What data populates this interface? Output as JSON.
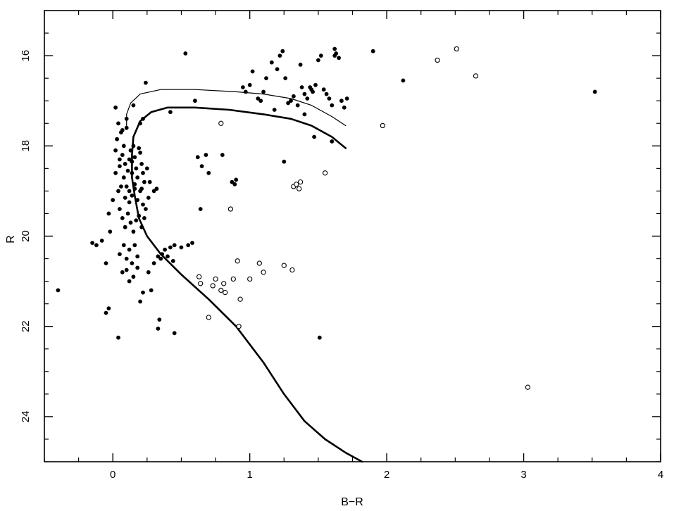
{
  "chart_data": {
    "type": "scatter",
    "title": "",
    "xlabel": "B−R",
    "ylabel": "R",
    "xlim": [
      -0.5,
      4.0
    ],
    "ylim": [
      25.0,
      15.0
    ],
    "y_inverted": true,
    "x_ticks": [
      0,
      1,
      2,
      3,
      4
    ],
    "x_tick_labels": [
      "0",
      "1",
      "2",
      "3",
      "4"
    ],
    "y_ticks": [
      16,
      18,
      20,
      22,
      24
    ],
    "y_tick_labels": [
      "16",
      "18",
      "20",
      "22",
      "24"
    ],
    "grid": false,
    "series": [
      {
        "marker": "filled-circle",
        "color": "#000000",
        "points": [
          [
            -0.4,
            21.2
          ],
          [
            -0.15,
            20.15
          ],
          [
            -0.12,
            20.2
          ],
          [
            -0.08,
            20.1
          ],
          [
            -0.05,
            21.7
          ],
          [
            -0.03,
            21.6
          ],
          [
            -0.05,
            20.6
          ],
          [
            -0.02,
            19.9
          ],
          [
            -0.03,
            19.5
          ],
          [
            0.0,
            19.2
          ],
          [
            0.02,
            18.6
          ],
          [
            0.04,
            19.0
          ],
          [
            0.05,
            18.3
          ],
          [
            0.03,
            17.85
          ],
          [
            0.02,
            17.15
          ],
          [
            0.04,
            17.5
          ],
          [
            0.06,
            17.7
          ],
          [
            0.07,
            17.65
          ],
          [
            0.08,
            18.0
          ],
          [
            0.1,
            17.4
          ],
          [
            0.1,
            17.6
          ],
          [
            0.15,
            17.1
          ],
          [
            0.2,
            17.5
          ],
          [
            0.22,
            17.4
          ],
          [
            0.24,
            16.6
          ],
          [
            0.07,
            18.2
          ],
          [
            0.09,
            18.4
          ],
          [
            0.11,
            18.55
          ],
          [
            0.12,
            18.3
          ],
          [
            0.13,
            18.1
          ],
          [
            0.14,
            18.6
          ],
          [
            0.15,
            18.0
          ],
          [
            0.16,
            18.25
          ],
          [
            0.17,
            18.5
          ],
          [
            0.18,
            18.7
          ],
          [
            0.2,
            18.15
          ],
          [
            0.21,
            18.4
          ],
          [
            0.22,
            18.6
          ],
          [
            0.23,
            18.8
          ],
          [
            0.08,
            18.7
          ],
          [
            0.1,
            18.9
          ],
          [
            0.12,
            19.0
          ],
          [
            0.14,
            19.1
          ],
          [
            0.16,
            18.95
          ],
          [
            0.18,
            19.2
          ],
          [
            0.2,
            19.0
          ],
          [
            0.22,
            19.3
          ],
          [
            0.24,
            19.4
          ],
          [
            0.26,
            19.15
          ],
          [
            0.05,
            19.4
          ],
          [
            0.07,
            19.6
          ],
          [
            0.09,
            19.8
          ],
          [
            0.11,
            19.5
          ],
          [
            0.13,
            19.7
          ],
          [
            0.15,
            19.9
          ],
          [
            0.17,
            19.65
          ],
          [
            0.19,
            19.55
          ],
          [
            0.21,
            19.8
          ],
          [
            0.23,
            19.6
          ],
          [
            0.3,
            19.0
          ],
          [
            0.32,
            18.95
          ],
          [
            0.25,
            18.5
          ],
          [
            0.27,
            18.8
          ],
          [
            0.02,
            18.1
          ],
          [
            0.05,
            18.45
          ],
          [
            0.06,
            18.9
          ],
          [
            0.09,
            19.15
          ],
          [
            0.12,
            19.25
          ],
          [
            0.14,
            18.35
          ],
          [
            0.16,
            18.85
          ],
          [
            0.19,
            18.05
          ],
          [
            0.21,
            18.95
          ],
          [
            0.08,
            20.2
          ],
          [
            0.1,
            20.5
          ],
          [
            0.12,
            20.3
          ],
          [
            0.14,
            20.6
          ],
          [
            0.16,
            20.2
          ],
          [
            0.18,
            20.45
          ],
          [
            0.05,
            20.4
          ],
          [
            0.07,
            20.8
          ],
          [
            0.1,
            20.75
          ],
          [
            0.12,
            21.0
          ],
          [
            0.15,
            20.9
          ],
          [
            0.18,
            20.7
          ],
          [
            0.2,
            21.45
          ],
          [
            0.22,
            21.25
          ],
          [
            0.26,
            20.8
          ],
          [
            0.28,
            21.2
          ],
          [
            0.3,
            20.6
          ],
          [
            0.33,
            20.45
          ],
          [
            0.36,
            20.4
          ],
          [
            0.38,
            20.3
          ],
          [
            0.4,
            20.45
          ],
          [
            0.42,
            20.25
          ],
          [
            0.45,
            20.2
          ],
          [
            0.5,
            20.25
          ],
          [
            0.55,
            20.2
          ],
          [
            0.58,
            20.15
          ],
          [
            0.35,
            20.5
          ],
          [
            0.44,
            20.55
          ],
          [
            0.34,
            21.85
          ],
          [
            0.33,
            22.05
          ],
          [
            0.45,
            22.15
          ],
          [
            0.04,
            22.25
          ],
          [
            0.53,
            15.95
          ],
          [
            0.42,
            17.25
          ],
          [
            0.6,
            17.0
          ],
          [
            0.62,
            18.25
          ],
          [
            0.65,
            18.45
          ],
          [
            0.68,
            18.2
          ],
          [
            0.7,
            18.6
          ],
          [
            0.64,
            19.4
          ],
          [
            0.8,
            18.2
          ],
          [
            0.87,
            18.8
          ],
          [
            0.89,
            18.85
          ],
          [
            0.9,
            18.75
          ],
          [
            0.95,
            16.7
          ],
          [
            0.97,
            16.8
          ],
          [
            1.0,
            16.65
          ],
          [
            1.02,
            16.35
          ],
          [
            1.06,
            16.95
          ],
          [
            1.08,
            17.0
          ],
          [
            1.1,
            16.8
          ],
          [
            1.12,
            16.5
          ],
          [
            1.16,
            16.15
          ],
          [
            1.18,
            17.2
          ],
          [
            1.2,
            16.3
          ],
          [
            1.22,
            16.0
          ],
          [
            1.24,
            15.9
          ],
          [
            1.26,
            16.5
          ],
          [
            1.28,
            17.05
          ],
          [
            1.3,
            17.0
          ],
          [
            1.32,
            16.9
          ],
          [
            1.35,
            17.1
          ],
          [
            1.37,
            16.2
          ],
          [
            1.38,
            16.7
          ],
          [
            1.4,
            16.85
          ],
          [
            1.42,
            16.95
          ],
          [
            1.44,
            16.7
          ],
          [
            1.45,
            16.75
          ],
          [
            1.46,
            16.8
          ],
          [
            1.48,
            16.65
          ],
          [
            1.5,
            16.1
          ],
          [
            1.52,
            16.0
          ],
          [
            1.54,
            16.75
          ],
          [
            1.56,
            16.85
          ],
          [
            1.58,
            16.95
          ],
          [
            1.6,
            17.1
          ],
          [
            1.62,
            15.85
          ],
          [
            1.63,
            15.95
          ],
          [
            1.65,
            16.05
          ],
          [
            1.67,
            17.0
          ],
          [
            1.69,
            17.15
          ],
          [
            1.71,
            16.95
          ],
          [
            1.47,
            17.8
          ],
          [
            1.6,
            17.9
          ],
          [
            1.25,
            18.35
          ],
          [
            1.4,
            17.3
          ],
          [
            1.62,
            16.0
          ],
          [
            1.9,
            15.9
          ],
          [
            2.12,
            16.55
          ],
          [
            3.52,
            16.8
          ],
          [
            1.51,
            22.25
          ]
        ]
      },
      {
        "marker": "open-circle",
        "color": "#000000",
        "points": [
          [
            0.79,
            17.5
          ],
          [
            0.86,
            19.4
          ],
          [
            0.63,
            20.9
          ],
          [
            0.64,
            21.05
          ],
          [
            0.7,
            21.8
          ],
          [
            0.73,
            21.1
          ],
          [
            0.75,
            20.95
          ],
          [
            0.79,
            21.2
          ],
          [
            0.81,
            21.05
          ],
          [
            0.82,
            21.25
          ],
          [
            0.88,
            20.95
          ],
          [
            0.91,
            20.55
          ],
          [
            0.93,
            21.4
          ],
          [
            0.92,
            22.0
          ],
          [
            1.0,
            20.95
          ],
          [
            1.07,
            20.6
          ],
          [
            1.1,
            20.8
          ],
          [
            1.25,
            20.65
          ],
          [
            1.31,
            20.75
          ],
          [
            1.32,
            18.9
          ],
          [
            1.34,
            18.85
          ],
          [
            1.36,
            18.95
          ],
          [
            1.37,
            18.8
          ],
          [
            1.55,
            18.6
          ],
          [
            1.97,
            17.55
          ],
          [
            2.37,
            16.1
          ],
          [
            2.51,
            15.85
          ],
          [
            2.65,
            16.45
          ],
          [
            3.03,
            23.35
          ]
        ]
      }
    ],
    "curves": [
      {
        "style": "thin",
        "color": "#000000",
        "points": [
          [
            0.1,
            17.6
          ],
          [
            0.1,
            17.3
          ],
          [
            0.13,
            17.05
          ],
          [
            0.2,
            16.85
          ],
          [
            0.35,
            16.75
          ],
          [
            0.6,
            16.75
          ],
          [
            0.9,
            16.8
          ],
          [
            1.1,
            16.85
          ],
          [
            1.3,
            16.95
          ],
          [
            1.45,
            17.1
          ],
          [
            1.6,
            17.35
          ],
          [
            1.7,
            17.55
          ]
        ]
      },
      {
        "style": "thick",
        "color": "#000000",
        "points": [
          [
            0.15,
            17.8
          ],
          [
            0.2,
            17.45
          ],
          [
            0.28,
            17.25
          ],
          [
            0.4,
            17.15
          ],
          [
            0.6,
            17.15
          ],
          [
            0.85,
            17.2
          ],
          [
            1.1,
            17.3
          ],
          [
            1.3,
            17.4
          ],
          [
            1.45,
            17.55
          ],
          [
            1.6,
            17.8
          ],
          [
            1.7,
            18.05
          ]
        ]
      },
      {
        "style": "thick",
        "color": "#000000",
        "points": [
          [
            0.15,
            17.8
          ],
          [
            0.14,
            18.2
          ],
          [
            0.14,
            18.7
          ],
          [
            0.16,
            19.1
          ],
          [
            0.19,
            19.6
          ],
          [
            0.25,
            20.0
          ],
          [
            0.35,
            20.4
          ],
          [
            0.5,
            20.85
          ],
          [
            0.7,
            21.4
          ],
          [
            0.9,
            22.0
          ],
          [
            1.1,
            22.8
          ],
          [
            1.25,
            23.5
          ],
          [
            1.4,
            24.1
          ],
          [
            1.55,
            24.5
          ],
          [
            1.7,
            24.8
          ],
          [
            1.82,
            25.0
          ]
        ]
      }
    ]
  }
}
